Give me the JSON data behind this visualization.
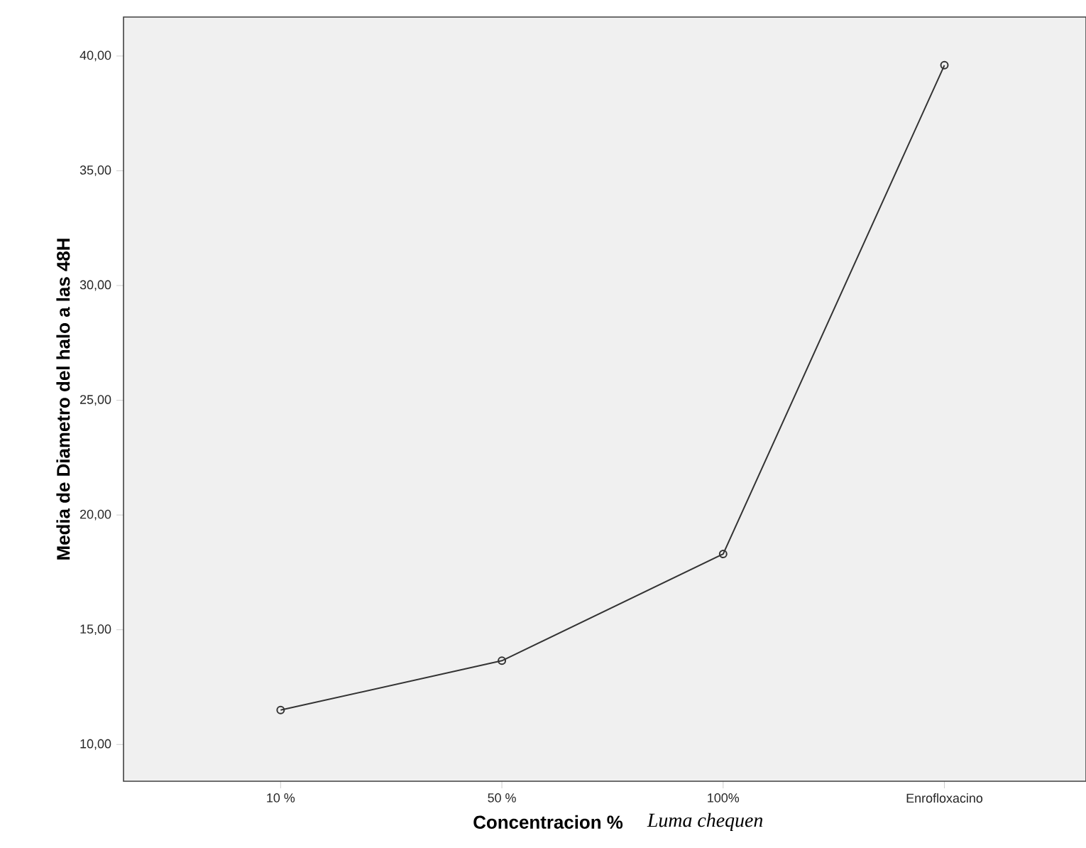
{
  "chart_data": {
    "type": "line",
    "ylabel": "Media de Diametro del halo a las 48H",
    "xlabel": "Concentracion %",
    "annotations": [
      "Luma chequen"
    ],
    "categories": [
      "10 %",
      "50 %",
      "100%",
      "Enrofloxacino"
    ],
    "series": [
      {
        "color": "#333333",
        "values": [
          11.5,
          13.65,
          18.3,
          39.6
        ]
      }
    ],
    "ylim": [
      8.4,
      41.7
    ],
    "yticks": [
      {
        "value": 10,
        "label": "10,00"
      },
      {
        "value": 15,
        "label": "15,00"
      },
      {
        "value": 20,
        "label": "20,00"
      },
      {
        "value": 25,
        "label": "25,00"
      },
      {
        "value": 30,
        "label": "30,00"
      },
      {
        "value": 35,
        "label": "35,00"
      },
      {
        "value": 40,
        "label": "40,00"
      }
    ],
    "marker": "circle",
    "line_style": "solid"
  }
}
